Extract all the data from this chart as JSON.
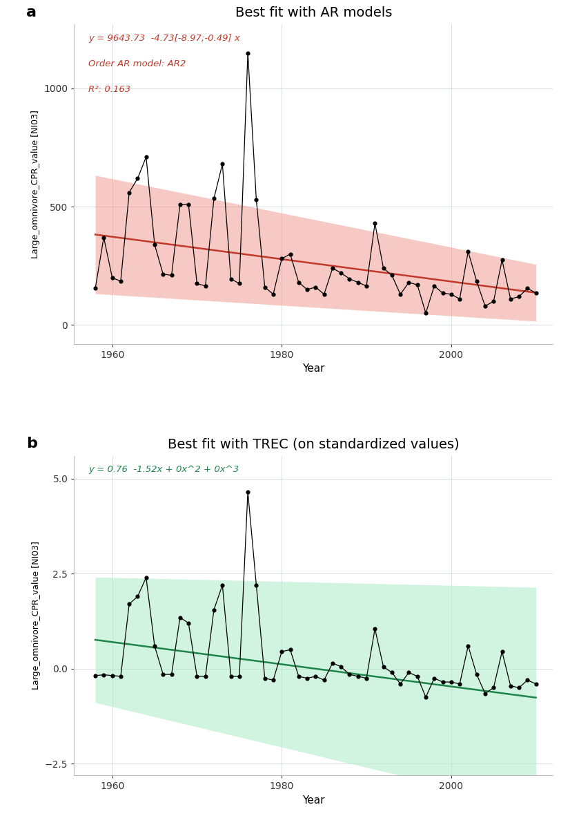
{
  "title_a": "Best fit with AR models",
  "title_b": "Best fit with TREC (on standardized values)",
  "ylabel": "Large_omnivore_CPR_value [NI03]",
  "xlabel": "Year",
  "label_a": "a",
  "label_b": "b",
  "annotation_a_line1": "y = 9643.73  -4.73[-8.97;-0.49] x",
  "annotation_a_line2": "Order AR model: AR2",
  "annotation_a_line3": "R²: 0.163",
  "annotation_b": "y = 0.76  -1.52x + 0x^2 + 0x^3",
  "years": [
    1958,
    1959,
    1960,
    1961,
    1962,
    1963,
    1964,
    1965,
    1966,
    1967,
    1968,
    1969,
    1970,
    1971,
    1972,
    1973,
    1974,
    1975,
    1976,
    1977,
    1978,
    1979,
    1980,
    1981,
    1982,
    1983,
    1984,
    1985,
    1986,
    1987,
    1988,
    1989,
    1990,
    1991,
    1992,
    1993,
    1994,
    1995,
    1996,
    1997,
    1998,
    1999,
    2000,
    2001,
    2002,
    2003,
    2004,
    2005,
    2006,
    2007,
    2008,
    2009,
    2010
  ],
  "values_a": [
    155,
    370,
    200,
    185,
    560,
    620,
    710,
    340,
    215,
    210,
    510,
    510,
    175,
    165,
    535,
    680,
    195,
    175,
    1150,
    530,
    160,
    130,
    280,
    300,
    180,
    150,
    160,
    130,
    240,
    220,
    195,
    180,
    165,
    430,
    240,
    210,
    130,
    180,
    170,
    50,
    165,
    135,
    130,
    110,
    310,
    185,
    80,
    100,
    275,
    110,
    120,
    155,
    135
  ],
  "values_b": [
    -0.18,
    -0.16,
    -0.18,
    -0.2,
    1.7,
    1.9,
    2.4,
    0.6,
    -0.15,
    -0.15,
    1.35,
    1.2,
    -0.2,
    -0.2,
    1.55,
    2.2,
    -0.2,
    -0.2,
    4.65,
    2.2,
    -0.25,
    -0.3,
    0.45,
    0.5,
    -0.2,
    -0.25,
    -0.2,
    -0.3,
    0.15,
    0.05,
    -0.15,
    -0.2,
    -0.25,
    1.05,
    0.05,
    -0.1,
    -0.4,
    -0.1,
    -0.2,
    -0.75,
    -0.25,
    -0.35,
    -0.35,
    -0.4,
    0.6,
    -0.15,
    -0.65,
    -0.5,
    0.45,
    -0.45,
    -0.5,
    -0.3,
    -0.4
  ],
  "ar_intercept": 9643.73,
  "ar_slope": -4.73,
  "trec_intercept": 0.76,
  "trec_slope": -1.52,
  "color_a_line": "#C0392B",
  "color_a_fill": "#F1948A",
  "color_b_line": "#1E8449",
  "color_b_fill": "#ABEBC6",
  "color_data": "#000000",
  "background": "#FFFFFF",
  "grid_color": "#D5D8DC",
  "ylim_a": [
    -80,
    1270
  ],
  "yticks_a": [
    0,
    500,
    1000
  ],
  "ylim_b": [
    -2.8,
    5.6
  ],
  "yticks_b": [
    -2.5,
    0.0,
    2.5,
    5.0
  ],
  "xlim": [
    1955.5,
    2012
  ],
  "xticks": [
    1960,
    1980,
    2000
  ],
  "fig_width": 8.26,
  "fig_height": 11.81
}
